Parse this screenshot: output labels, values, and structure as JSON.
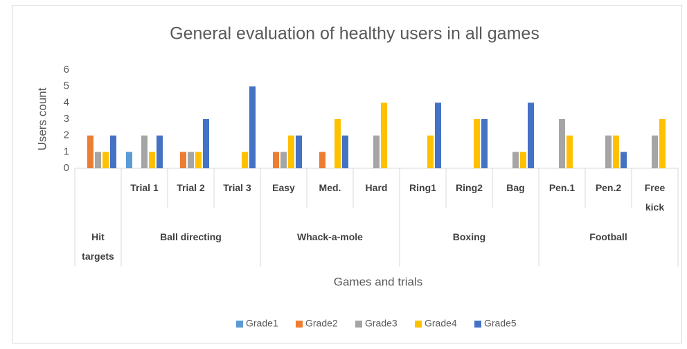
{
  "chart_data": {
    "type": "bar",
    "title": "General evaluation of healthy users in all games",
    "x_label": "Games and trials",
    "y_label": "Users count",
    "categories": [
      null,
      "Trial 1",
      "Trial 2",
      "Trial 3",
      "Easy",
      "Med.",
      "Hard",
      "Ring1",
      "Ring2",
      "Bag",
      "Pen.1",
      "Pen.2",
      "Free kick"
    ],
    "groups": [
      {
        "name": "Hit targets",
        "span": 1
      },
      {
        "name": "Ball directing",
        "span": 3
      },
      {
        "name": "Whack-a-mole",
        "span": 3
      },
      {
        "name": "Boxing",
        "span": 3
      },
      {
        "name": "Football",
        "span": 3
      }
    ],
    "series": [
      {
        "name": "Grade1",
        "color": "#5b9bd5",
        "values": [
          0,
          1,
          0,
          0,
          0,
          0,
          0,
          0,
          0,
          0,
          0,
          0,
          0
        ]
      },
      {
        "name": "Grade2",
        "color": "#ed7d31",
        "values": [
          2,
          0,
          1,
          0,
          1,
          1,
          0,
          0,
          0,
          0,
          0,
          0,
          0
        ]
      },
      {
        "name": "Grade3",
        "color": "#a5a5a5",
        "values": [
          1,
          2,
          1,
          0,
          1,
          0,
          2,
          0,
          0,
          1,
          3,
          2,
          2
        ]
      },
      {
        "name": "Grade4",
        "color": "#ffc000",
        "values": [
          1,
          1,
          1,
          1,
          2,
          3,
          4,
          2,
          3,
          1,
          2,
          2,
          3
        ]
      },
      {
        "name": "Grade5",
        "color": "#4472c4",
        "values": [
          2,
          2,
          3,
          5,
          2,
          2,
          0,
          4,
          3,
          4,
          0,
          1,
          0
        ]
      }
    ],
    "ylim": [
      0,
      6
    ],
    "yticks": [
      0,
      1,
      2,
      3,
      4,
      5,
      6
    ],
    "grid": false,
    "legend": "bottom"
  }
}
